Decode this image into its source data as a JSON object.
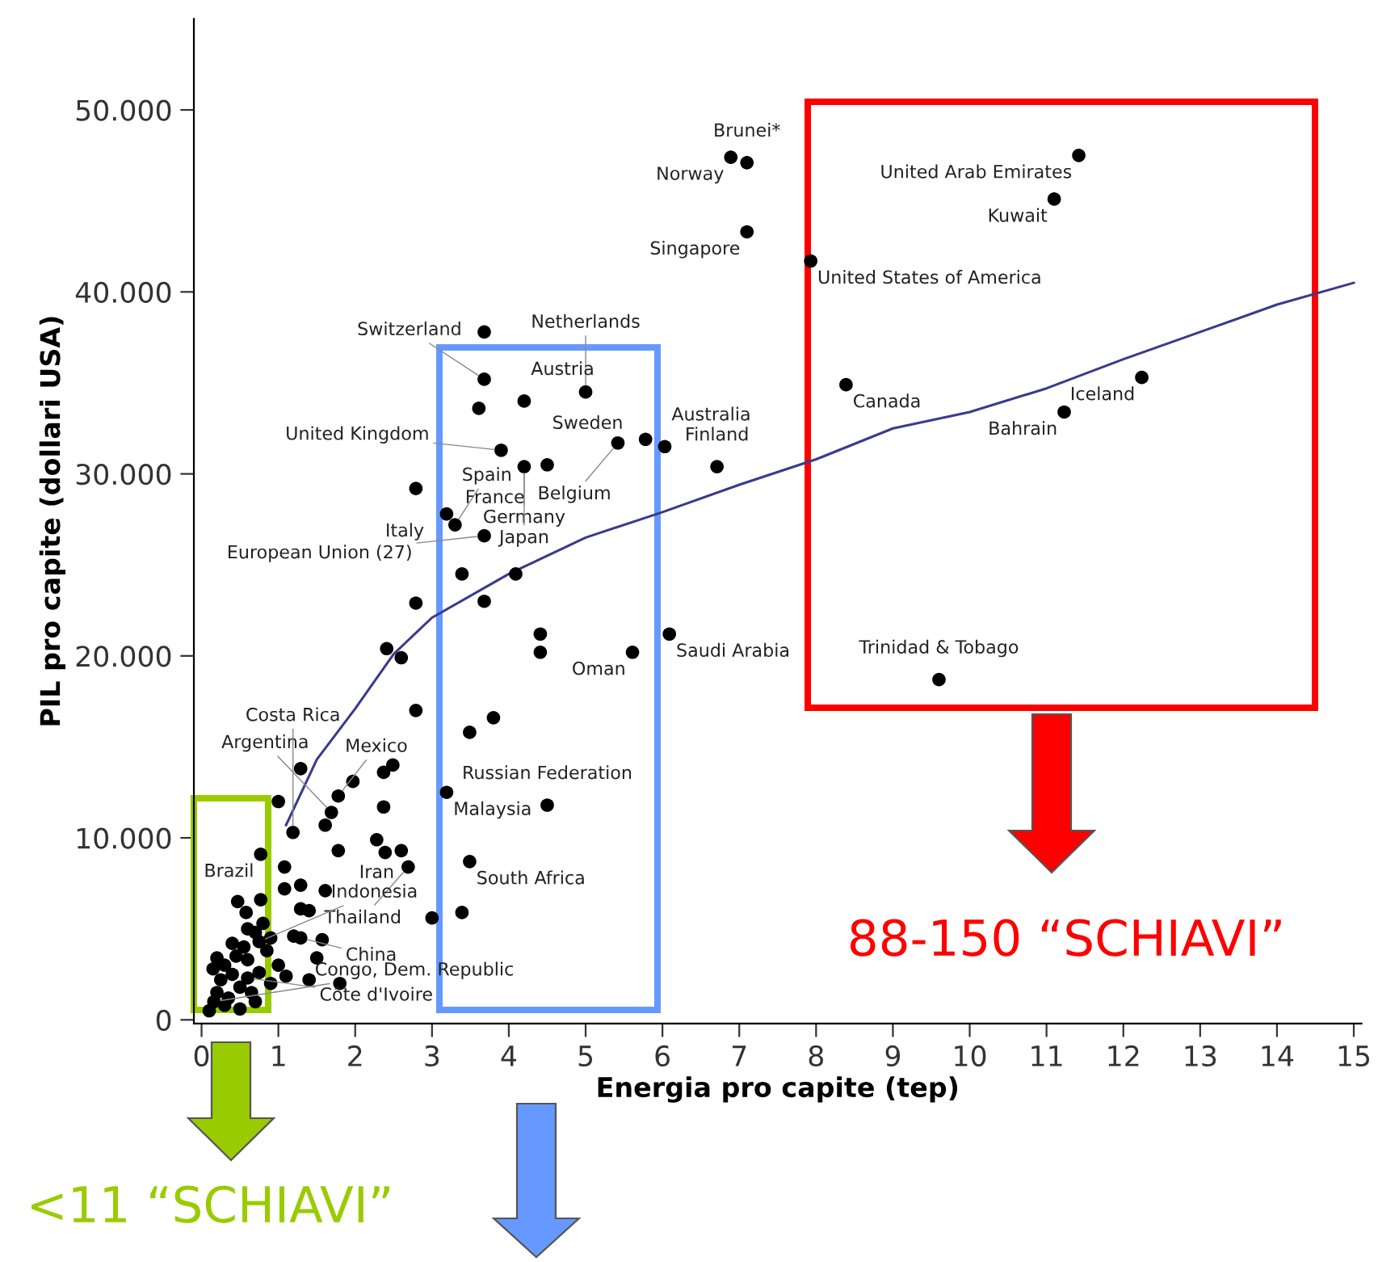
{
  "chart_data": {
    "type": "scatter",
    "xlabel": "Energia pro capite (tep)",
    "ylabel": "PIL pro capite (dollari USA)",
    "xlim": [
      -0.1,
      15.1
    ],
    "ylim": [
      -200,
      55000
    ],
    "xticks": [
      0,
      1,
      2,
      3,
      4,
      5,
      6,
      7,
      8,
      9,
      10,
      11,
      12,
      13,
      14,
      15
    ],
    "yticks": [
      {
        "value": 0,
        "label": "0"
      },
      {
        "value": 10000,
        "label": "10.000"
      },
      {
        "value": 20000,
        "label": "20.000"
      },
      {
        "value": 30000,
        "label": "30.000"
      },
      {
        "value": 40000,
        "label": "40.000"
      },
      {
        "value": 50000,
        "label": "50.000"
      }
    ],
    "grid": false,
    "legend": false,
    "marker": "circle",
    "series": [
      {
        "color": "#000000",
        "x": [
          6.89,
          7.1,
          7.1,
          7.93,
          11.42,
          11.1,
          8.39,
          12.24,
          11.23,
          9.6,
          6.71,
          6.03,
          5.78,
          5.42,
          5.0,
          4.2,
          3.68,
          3.68,
          3.61,
          3.9,
          4.2,
          4.5,
          3.19,
          3.3,
          3.68,
          2.79,
          3.39,
          4.09,
          2.79,
          3.68,
          4.41,
          4.41,
          5.61,
          6.09,
          2.41,
          2.6,
          2.79,
          3.8,
          3.49,
          1.29,
          2.49,
          2.37,
          1.97,
          1.78,
          2.37,
          3.19,
          4.5,
          1.69,
          1.61,
          1.0,
          1.19,
          2.28,
          0.77,
          1.78,
          2.39,
          2.6,
          3.49,
          2.69,
          1.08,
          1.08,
          1.29,
          1.61,
          1.29,
          1.4,
          0.47,
          0.58,
          0.77,
          3.0,
          3.39,
          1.29,
          0.75,
          1.57,
          1.8,
          0.6,
          0.16,
          0.1,
          0.2,
          0.25,
          0.3,
          0.35,
          0.4,
          0.45,
          0.5,
          0.55,
          0.6,
          0.65,
          0.7,
          0.75,
          0.8,
          0.85,
          0.9,
          0.3,
          0.5,
          0.2,
          0.4,
          0.7,
          0.15,
          0.6,
          0.9,
          1.0,
          1.1,
          1.2,
          1.5,
          1.4
        ],
        "values": [
          47400,
          47100,
          43300,
          41700,
          47500,
          45100,
          34900,
          35300,
          33400,
          18700,
          30400,
          31500,
          31900,
          31700,
          34500,
          34000,
          35200,
          37800,
          33600,
          31300,
          30400,
          30500,
          27800,
          27200,
          26600,
          29200,
          24500,
          24500,
          22900,
          23000,
          21200,
          20200,
          20200,
          21200,
          20400,
          19900,
          17000,
          16600,
          15800,
          13800,
          14000,
          13600,
          13100,
          12300,
          11700,
          12500,
          11800,
          11400,
          10700,
          12000,
          10300,
          9900,
          9100,
          9300,
          9200,
          9300,
          8700,
          8400,
          8400,
          7200,
          7400,
          7100,
          6100,
          6000,
          6500,
          5900,
          6600,
          5600,
          5900,
          4500,
          4300,
          4400,
          2000,
          2300,
          1000,
          500,
          1500,
          2200,
          3000,
          1200,
          2500,
          3500,
          1800,
          4000,
          3300,
          1500,
          4800,
          2600,
          5300,
          3800,
          2000,
          800,
          600,
          3400,
          4200,
          1000,
          2800,
          5000,
          4500,
          3000,
          2400,
          4600,
          3400,
          2200
        ]
      },
      {
        "type": "line",
        "color": "#3a3a8c",
        "marker": "none",
        "line_style": "solid",
        "x": [
          1.1,
          1.5,
          2,
          2.5,
          3,
          4,
          5,
          6,
          7,
          8,
          9,
          10,
          11,
          12,
          13,
          14,
          15
        ],
        "values": [
          10700,
          14300,
          17100,
          20100,
          22100,
          24500,
          26500,
          27900,
          29400,
          30800,
          32500,
          33400,
          34700,
          36300,
          37800,
          39300,
          40500
        ]
      }
    ],
    "annotations": [
      {
        "text": "Norway",
        "x": 6.89,
        "y": 47400
      },
      {
        "text": "Brunei*",
        "x": 7.1,
        "y": 47100
      },
      {
        "text": "Singapore",
        "x": 7.1,
        "y": 43300
      },
      {
        "text": "United States of America",
        "x": 7.93,
        "y": 41700
      },
      {
        "text": "United Arab Emirates",
        "x": 11.42,
        "y": 47500
      },
      {
        "text": "Kuwait",
        "x": 11.1,
        "y": 45100
      },
      {
        "text": "Canada",
        "x": 8.39,
        "y": 34900
      },
      {
        "text": "Iceland",
        "x": 12.24,
        "y": 35300
      },
      {
        "text": "Bahrain",
        "x": 11.23,
        "y": 33400
      },
      {
        "text": "Trinidad & Tobago",
        "x": 9.6,
        "y": 18700
      },
      {
        "text": "Finland",
        "x": 6.71,
        "y": 30400
      },
      {
        "text": "Australia",
        "x": 6.03,
        "y": 31500
      },
      {
        "text": "Sweden",
        "x": 5.78,
        "y": 31900
      },
      {
        "text": "Belgium",
        "x": 5.42,
        "y": 31700
      },
      {
        "text": "Netherlands",
        "x": 5.0,
        "y": 34500
      },
      {
        "text": "Austria",
        "x": 4.2,
        "y": 34000
      },
      {
        "text": "Switzerland",
        "x": 3.68,
        "y": 35200
      },
      {
        "text": "United Kingdom",
        "x": 3.9,
        "y": 31300
      },
      {
        "text": "Germany",
        "x": 4.2,
        "y": 30400
      },
      {
        "text": "France",
        "x": 4.5,
        "y": 30500
      },
      {
        "text": "Japan",
        "x": 4.2,
        "y": 30400
      },
      {
        "text": "Italy",
        "x": 3.19,
        "y": 27800
      },
      {
        "text": "Spain",
        "x": 3.3,
        "y": 27200
      },
      {
        "text": "European Union (27)",
        "x": 3.68,
        "y": 26600
      },
      {
        "text": "Oman",
        "x": 5.61,
        "y": 20200
      },
      {
        "text": "Saudi Arabia",
        "x": 6.09,
        "y": 21200
      },
      {
        "text": "Mexico",
        "x": 1.78,
        "y": 12300
      },
      {
        "text": "Malaysia",
        "x": 3.19,
        "y": 12500
      },
      {
        "text": "Russian Federation",
        "x": 4.5,
        "y": 11800
      },
      {
        "text": "Argentina",
        "x": 1.69,
        "y": 11400
      },
      {
        "text": "Costa Rica",
        "x": 1.19,
        "y": 10300
      },
      {
        "text": "Iran",
        "x": 2.28,
        "y": 9900
      },
      {
        "text": "Brazil",
        "x": 0.77,
        "y": 9100
      },
      {
        "text": "South Africa",
        "x": 3.49,
        "y": 8700
      },
      {
        "text": "Thailand",
        "x": 2.69,
        "y": 8400
      },
      {
        "text": "China",
        "x": 1.29,
        "y": 4500
      },
      {
        "text": "Indonesia",
        "x": 0.75,
        "y": 4300
      },
      {
        "text": "Côte d'Ivoire",
        "x": 0.6,
        "y": 2300
      },
      {
        "text": "Congo, Dem. Republic",
        "x": 0.16,
        "y": 1000
      },
      "88-150 “SCHIAVI”",
      "<11 “SCHIAVI”"
    ]
  }
}
